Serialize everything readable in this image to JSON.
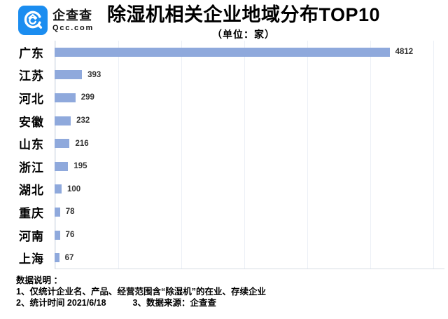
{
  "brand": {
    "name": "企查查",
    "domain": "Qcc.com"
  },
  "header": {
    "title": "除湿机相关企业地域分布TOP10",
    "subtitle": "（单位：家）"
  },
  "chart_data": {
    "type": "bar",
    "orientation": "horizontal",
    "title": "除湿机相关企业地域分布TOP10",
    "unit": "家",
    "categories": [
      "广东",
      "江苏",
      "河北",
      "安徽",
      "山东",
      "浙江",
      "湖北",
      "重庆",
      "河南",
      "上海"
    ],
    "values": [
      4812,
      393,
      299,
      232,
      216,
      195,
      100,
      78,
      76,
      67
    ],
    "xlim": [
      0,
      5600
    ],
    "grid": true,
    "legend": "none",
    "bar_color": "#8fa9dc"
  },
  "footer": {
    "heading": "数据说明 ：",
    "note1": "1、仅统计企业名、产品、经营范围含“除湿机”的在业、存续企业",
    "note2": "2、统计时间 2021/6/18",
    "note3": "3、数据来源：企查查"
  },
  "colors": {
    "bar": "#8fa9dc",
    "brand_blue": "#1b8df0",
    "grid_line": "#ecf0f6",
    "axis_line": "#d7dce4",
    "value_label": "#333333"
  }
}
